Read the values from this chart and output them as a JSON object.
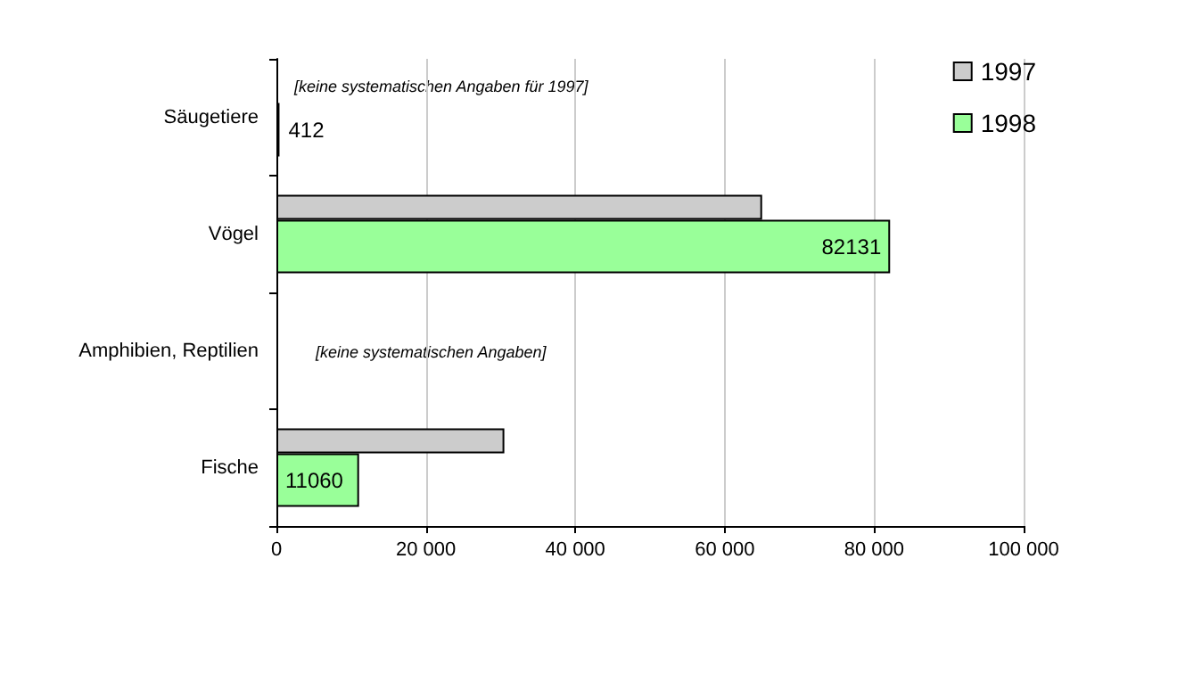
{
  "chart_data": {
    "type": "bar",
    "orientation": "horizontal",
    "categories": [
      "Säugetiere",
      "Vögel",
      "Amphibien, Reptilien",
      "Fische"
    ],
    "series": [
      {
        "name": "1997",
        "color": "#cccccc",
        "values": [
          null,
          65000,
          null,
          30500
        ]
      },
      {
        "name": "1998",
        "color": "#99ff99",
        "values": [
          412,
          82131,
          null,
          11060
        ],
        "value_labels": [
          "412",
          "82131",
          null,
          "11060"
        ]
      }
    ],
    "xlim": [
      0,
      100000
    ],
    "xticks": [
      {
        "value": 0,
        "label": "0"
      },
      {
        "value": 20000,
        "label": "20 000"
      },
      {
        "value": 40000,
        "label": "40 000"
      },
      {
        "value": 60000,
        "label": "60 000"
      },
      {
        "value": 80000,
        "label": "80 000"
      },
      {
        "value": 100000,
        "label": "100 000"
      }
    ],
    "grid": "x",
    "legend": "top right",
    "annotations": [
      "[keine systematischen Angaben für 1997]",
      "[keine systematischen Angaben]"
    ]
  }
}
